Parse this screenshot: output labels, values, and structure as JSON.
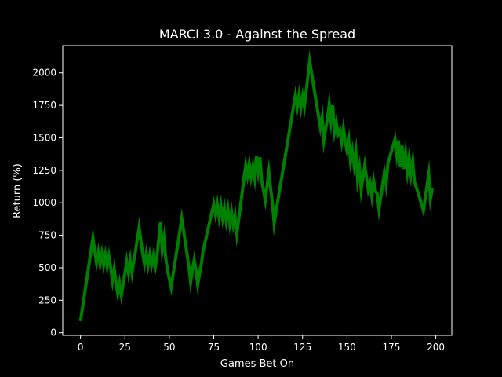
{
  "chart_data": {
    "type": "line",
    "title": "MARCI 3.0 - Against the Spread",
    "xlabel": "Games Bet On",
    "ylabel": "Return (%)",
    "xlim": [
      -10,
      209
    ],
    "ylim": [
      -20,
      2210
    ],
    "xticks": [
      0,
      25,
      50,
      75,
      100,
      125,
      150,
      175,
      200
    ],
    "yticks": [
      0,
      250,
      500,
      750,
      1000,
      1250,
      1500,
      1750,
      2000
    ],
    "grid": false,
    "series_color": "#008000",
    "series": [
      {
        "x": [
          0,
          7,
          8,
          9,
          10,
          11,
          12,
          13,
          14,
          15,
          16,
          17,
          18,
          19,
          20,
          21,
          22,
          23,
          24,
          25,
          26,
          27,
          28,
          29,
          30,
          31,
          33,
          35,
          36,
          37,
          38,
          39,
          40,
          41,
          42,
          43,
          45,
          46,
          47,
          48,
          49,
          51,
          57,
          61,
          62,
          63,
          64,
          65,
          66,
          67,
          68,
          69,
          75,
          76,
          77,
          78,
          79,
          80,
          81,
          82,
          83,
          84,
          85,
          86,
          87,
          88,
          93,
          94,
          95,
          96,
          97,
          98,
          99,
          100,
          101,
          102,
          104,
          106,
          107,
          108,
          109,
          110,
          121,
          122,
          123,
          124,
          125,
          126,
          129,
          135,
          136,
          137,
          138,
          139,
          140,
          141,
          142,
          143,
          144,
          145,
          146,
          147,
          148,
          149,
          150,
          151,
          152,
          153,
          154,
          155,
          156,
          157,
          158,
          160,
          162,
          163,
          164,
          165,
          166,
          167,
          168,
          171,
          172,
          173,
          177,
          178,
          179,
          180,
          181,
          182,
          183,
          184,
          185,
          186,
          187,
          188,
          190,
          193,
          196,
          197,
          198
        ],
        "y": [
          90,
          730,
          630,
          540,
          620,
          530,
          610,
          520,
          600,
          510,
          590,
          500,
          400,
          490,
          380,
          300,
          380,
          290,
          370,
          460,
          550,
          460,
          560,
          460,
          550,
          630,
          810,
          610,
          530,
          610,
          520,
          600,
          520,
          590,
          500,
          580,
          850,
          640,
          730,
          570,
          480,
          350,
          880,
          510,
          390,
          480,
          560,
          480,
          370,
          450,
          530,
          630,
          990,
          910,
          990,
          890,
          980,
          880,
          960,
          860,
          950,
          840,
          930,
          830,
          900,
          760,
          1290,
          1210,
          1300,
          1200,
          1280,
          1190,
          1360,
          1240,
          1350,
          1170,
          1020,
          1240,
          1110,
          1000,
          840,
          930,
          1830,
          1740,
          1830,
          1730,
          1820,
          1740,
          2090,
          1580,
          1660,
          1480,
          1570,
          1650,
          1760,
          1630,
          1750,
          1550,
          1620,
          1530,
          1560,
          1470,
          1570,
          1470,
          1400,
          1480,
          1320,
          1400,
          1290,
          1390,
          1180,
          1270,
          1100,
          1290,
          1100,
          1150,
          1050,
          1170,
          1090,
          1070,
          950,
          1230,
          1140,
          1300,
          1490,
          1370,
          1480,
          1280,
          1440,
          1260,
          1380,
          1240,
          1350,
          1220,
          1320,
          1160,
          1080,
          940,
          1220,
          1030,
          1110
        ]
      }
    ]
  }
}
